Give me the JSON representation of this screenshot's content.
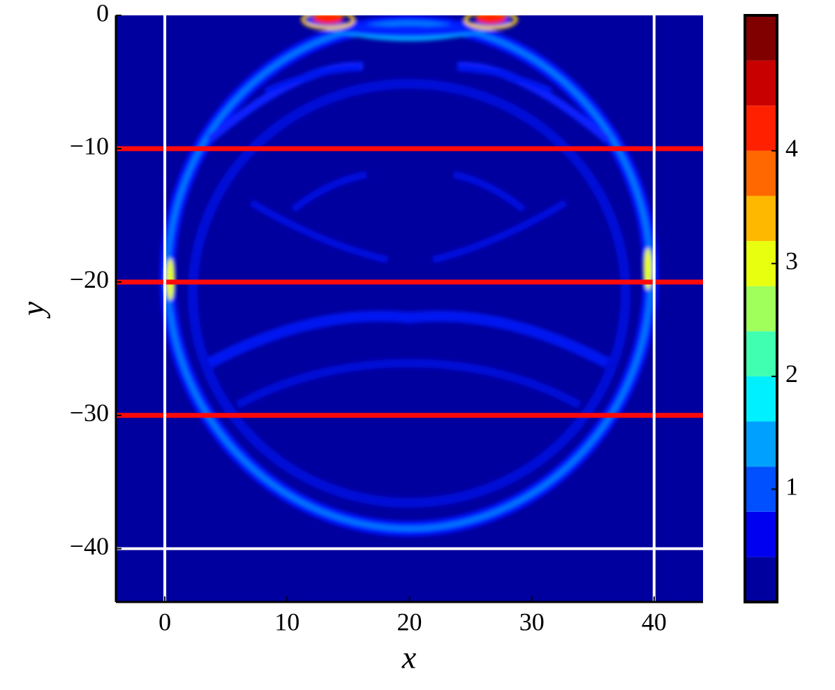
{
  "chart_data": {
    "type": "contour",
    "x_label": "x",
    "y_label": "y",
    "xlim": [
      -4,
      44
    ],
    "ylim": [
      -44,
      0
    ],
    "xticks": [
      0,
      10,
      20,
      30,
      40
    ],
    "yticks": [
      {
        "value": -40,
        "label": "−40"
      },
      {
        "value": -30,
        "label": "−30"
      },
      {
        "value": -20,
        "label": "−20"
      },
      {
        "value": -10,
        "label": "−10"
      },
      0
    ],
    "background_color": "#00009e",
    "reference_lines": [
      {
        "axis": "y",
        "value": -10,
        "color": "#ff0a0a"
      },
      {
        "axis": "y",
        "value": -20,
        "color": "#ff0a0a"
      },
      {
        "axis": "y",
        "value": -30,
        "color": "#ff0a0a"
      },
      {
        "axis": "y",
        "value": -40,
        "color": "#ffffff"
      },
      {
        "axis": "x",
        "value": 0,
        "color": "#ffffff"
      },
      {
        "axis": "x",
        "value": 40,
        "color": "#ffffff"
      }
    ],
    "colorbar": {
      "levels": [
        0,
        0.4,
        0.8,
        1.2,
        1.6,
        2.0,
        2.4,
        2.8,
        3.2,
        3.6,
        4.0,
        4.4,
        4.8,
        5.2
      ],
      "colors": [
        "#00009e",
        "#0000f0",
        "#0050ff",
        "#00a0ff",
        "#00f0ff",
        "#40ffb0",
        "#a0ff5a",
        "#e8ff10",
        "#ffb800",
        "#ff6800",
        "#ff2000",
        "#c80000",
        "#800000"
      ],
      "ticks": [
        1,
        2,
        3,
        4
      ]
    }
  }
}
